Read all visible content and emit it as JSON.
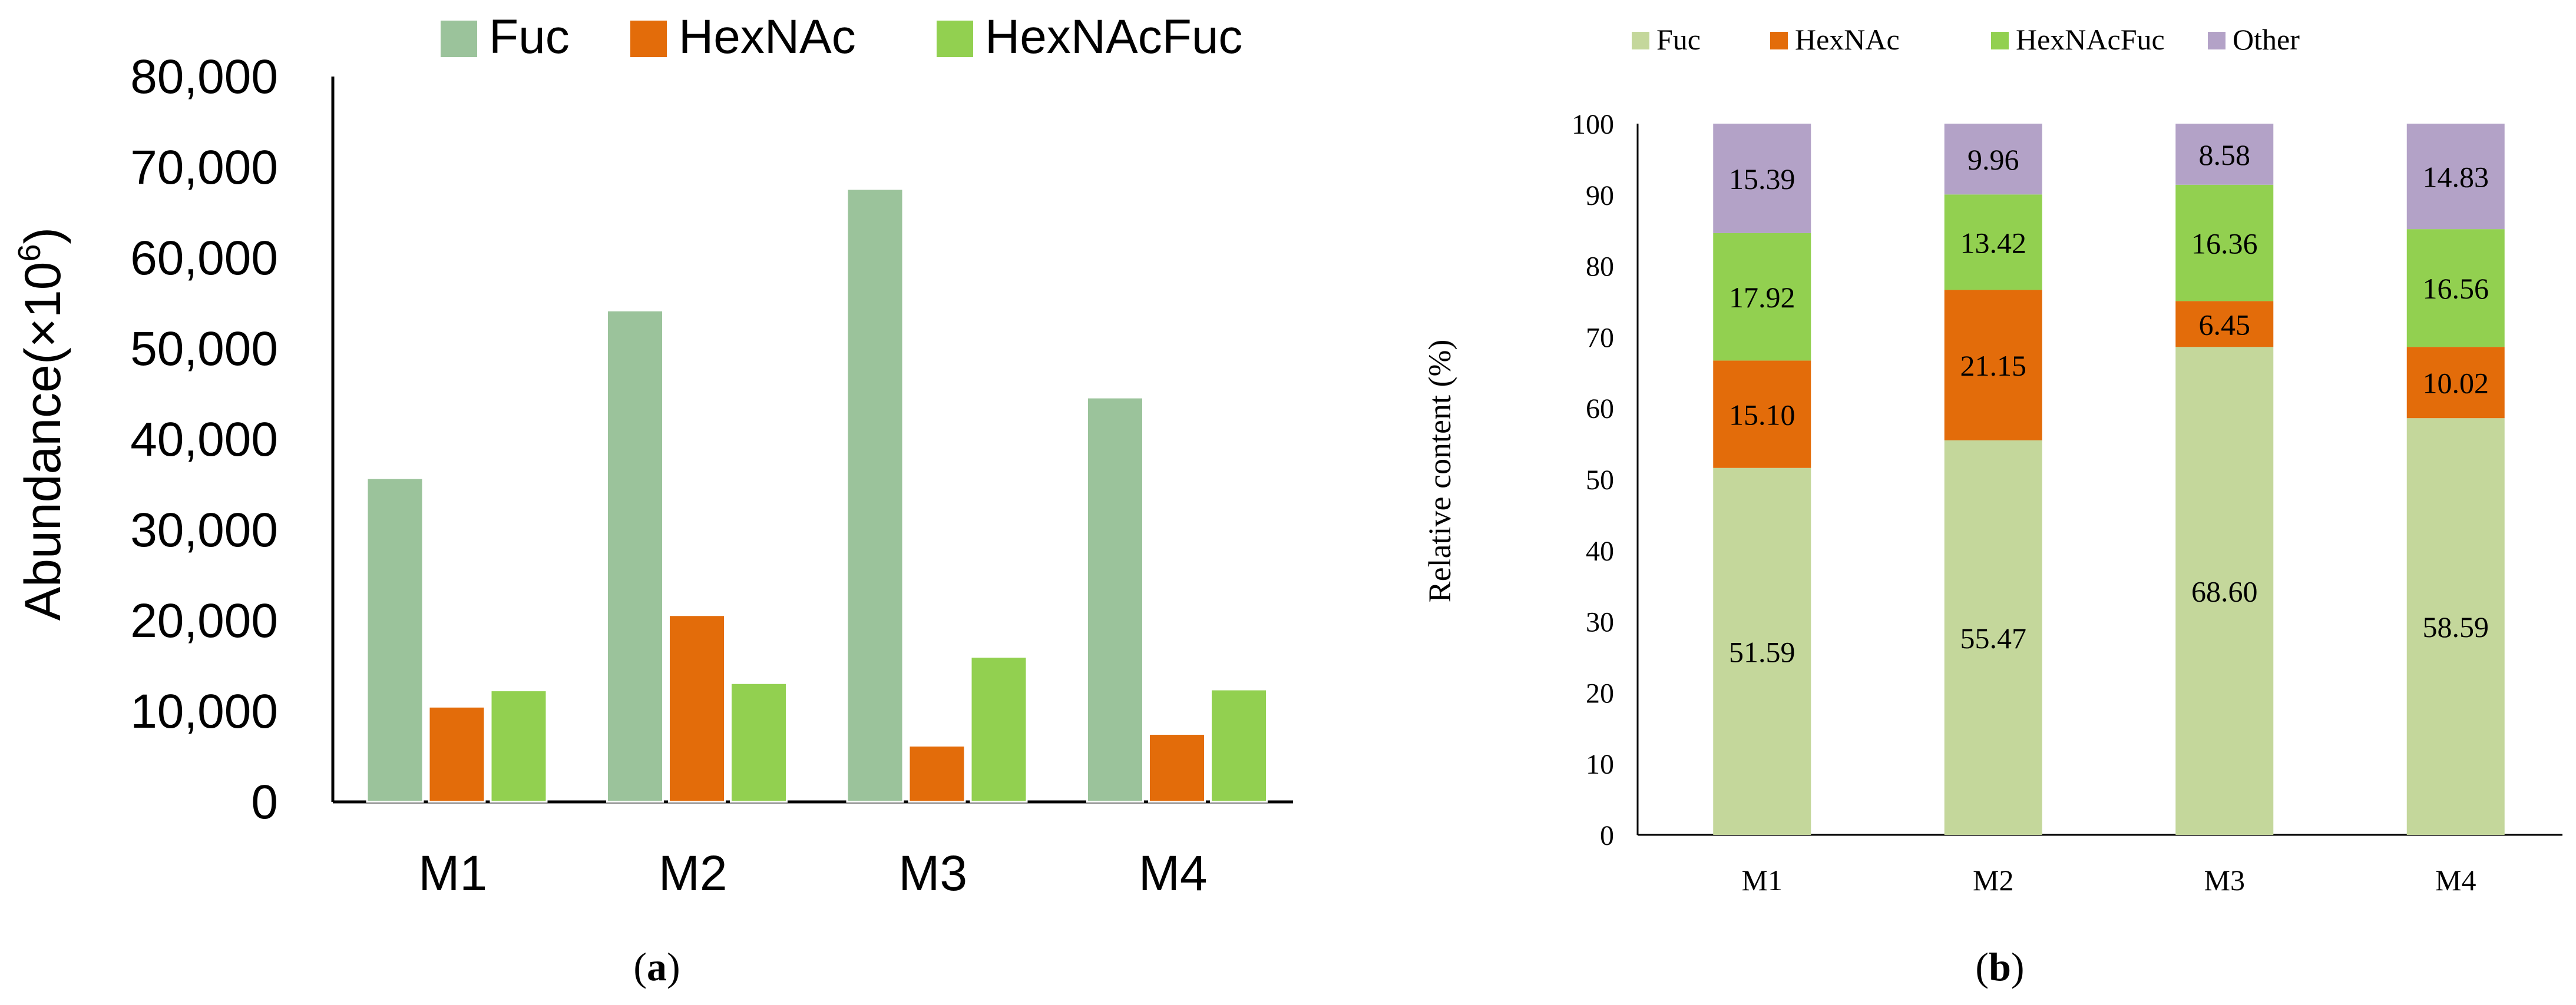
{
  "chart_data": [
    {
      "panel_label": "(a)",
      "panel_letter": "a",
      "type": "bar",
      "title": "",
      "xlabel": "",
      "ylabel": "Abundance(×10",
      "ylabel_exponent": "6",
      "ylabel_suffix": ")",
      "categories": [
        "M1",
        "M2",
        "M3",
        "M4"
      ],
      "ylim": [
        0,
        80000
      ],
      "yticks": [
        "0",
        "10,000",
        "20,000",
        "30,000",
        "40,000",
        "50,000",
        "60,000",
        "70,000",
        "80,000"
      ],
      "grid": false,
      "legend_position": "top",
      "series": [
        {
          "name": "Fuc",
          "color": "#9bc39b",
          "values": [
            35700,
            54200,
            67600,
            44600
          ]
        },
        {
          "name": "HexNAc",
          "color": "#e36c0a",
          "values": [
            10500,
            20600,
            6200,
            7500
          ]
        },
        {
          "name": "HexNAcFuc",
          "color": "#92d050",
          "values": [
            12300,
            13100,
            16000,
            12400
          ]
        }
      ]
    },
    {
      "panel_label": "(b)",
      "panel_letter": "b",
      "type": "bar",
      "stacked": true,
      "title": "",
      "xlabel": "",
      "ylabel": "Relative content (%)",
      "categories": [
        "M1",
        "M2",
        "M3",
        "M4"
      ],
      "ylim": [
        0,
        100
      ],
      "yticks": [
        "0",
        "10",
        "20",
        "30",
        "40",
        "50",
        "60",
        "70",
        "80",
        "90",
        "100"
      ],
      "grid": false,
      "legend_position": "top",
      "series": [
        {
          "name": "Fuc",
          "color": "#c4d79b",
          "values": [
            51.59,
            55.47,
            68.6,
            58.59
          ],
          "labels": [
            "51.59",
            "55.47",
            "68.60",
            "58.59"
          ]
        },
        {
          "name": "HexNAc",
          "color": "#e36c0a",
          "values": [
            15.1,
            21.15,
            6.45,
            10.02
          ],
          "labels": [
            "15.10",
            "21.15",
            "6.45",
            "10.02"
          ]
        },
        {
          "name": "HexNAcFuc",
          "color": "#92d050",
          "values": [
            17.92,
            13.42,
            16.36,
            16.56
          ],
          "labels": [
            "17.92",
            "13.42",
            "16.36",
            "16.56"
          ]
        },
        {
          "name": "Other",
          "color": "#b3a2c7",
          "values": [
            15.39,
            9.96,
            8.58,
            14.83
          ],
          "labels": [
            "15.39",
            "9.96",
            "8.58",
            "14.83"
          ]
        }
      ]
    }
  ]
}
